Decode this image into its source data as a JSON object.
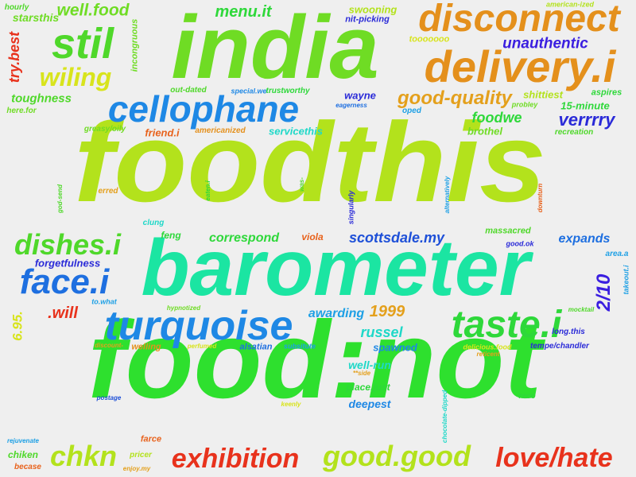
{
  "word_cloud": {
    "words": [
      {
        "text": "foodthis",
        "color": "#b3e21c",
        "rotate": false
      },
      {
        "text": "food:not",
        "color": "#2ee02e",
        "rotate": false
      },
      {
        "text": "india",
        "color": "#6fdc24",
        "rotate": false
      },
      {
        "text": "barometer",
        "color": "#1be5a2",
        "rotate": false
      },
      {
        "text": "disconnect",
        "color": "#e4901c",
        "rotate": false
      },
      {
        "text": "delivery.i",
        "color": "#e4901c",
        "rotate": false
      },
      {
        "text": "stil",
        "color": "#4fd82a",
        "rotate": false
      },
      {
        "text": "cellophane",
        "color": "#1e88e5",
        "rotate": false
      },
      {
        "text": "turquoise",
        "color": "#1e88e5",
        "rotate": false
      },
      {
        "text": "taste.i",
        "color": "#2ed83a",
        "rotate": false
      },
      {
        "text": "face.i",
        "color": "#1e6fe0",
        "rotate": false
      },
      {
        "text": "dishes.i",
        "color": "#4fd82a",
        "rotate": false
      },
      {
        "text": "chkn",
        "color": "#b3e21c",
        "rotate": false
      },
      {
        "text": "exhibition",
        "color": "#e8321c",
        "rotate": false
      },
      {
        "text": "good.good",
        "color": "#b3e21c",
        "rotate": false
      },
      {
        "text": "love/hate",
        "color": "#e8321c",
        "rotate": false
      },
      {
        "text": "wiling",
        "color": "#d8e41c",
        "rotate": false
      },
      {
        "text": "good-quality",
        "color": "#e4a01c",
        "rotate": false
      },
      {
        "text": "well.food",
        "color": "#6fdc24",
        "rotate": false
      },
      {
        "text": "menu.it",
        "color": "#2ed83a",
        "rotate": false
      },
      {
        "text": "starsthis",
        "color": "#6fdc24",
        "rotate": false
      },
      {
        "text": "hourly",
        "color": "#4fd82a",
        "rotate": false
      },
      {
        "text": "try.best",
        "color": "#e8321c",
        "rotate": true
      },
      {
        "text": "incongruous",
        "color": "#6fdc24",
        "rotate": true
      },
      {
        "text": "swooning",
        "color": "#b3e21c",
        "rotate": false
      },
      {
        "text": "nit-picking",
        "color": "#2a2ad8",
        "rotate": false
      },
      {
        "text": "american-ized",
        "color": "#b3e21c",
        "rotate": false
      },
      {
        "text": "tooooooo",
        "color": "#d8e41c",
        "rotate": false
      },
      {
        "text": "unauthentic",
        "color": "#3a1ee0",
        "rotate": false
      },
      {
        "text": "toughness",
        "color": "#4fd82a",
        "rotate": false
      },
      {
        "text": "here.for",
        "color": "#6fdc24",
        "rotate": false
      },
      {
        "text": "out-dated",
        "color": "#4fd82a",
        "rotate": false
      },
      {
        "text": "special.we",
        "color": "#1e88e5",
        "rotate": false
      },
      {
        "text": "trustworthy",
        "color": "#2ed83a",
        "rotate": false
      },
      {
        "text": "wayne",
        "color": "#2a2ad8",
        "rotate": false
      },
      {
        "text": "eagerness",
        "color": "#1e6fe0",
        "rotate": false
      },
      {
        "text": "oped",
        "color": "#1ea0e5",
        "rotate": false
      },
      {
        "text": "shittiest",
        "color": "#b3e21c",
        "rotate": false
      },
      {
        "text": "probley",
        "color": "#6fdc24",
        "rotate": false
      },
      {
        "text": "aspires",
        "color": "#2ed83a",
        "rotate": false
      },
      {
        "text": "15-minute",
        "color": "#2ed83a",
        "rotate": false
      },
      {
        "text": "verrrry",
        "color": "#2a2ad8",
        "rotate": false
      },
      {
        "text": "foodwe",
        "color": "#2ed83a",
        "rotate": false
      },
      {
        "text": "brothel",
        "color": "#6fdc24",
        "rotate": false
      },
      {
        "text": "recreation",
        "color": "#4fd82a",
        "rotate": false
      },
      {
        "text": "greasy/oily",
        "color": "#6fdc24",
        "rotate": false
      },
      {
        "text": "friend.i",
        "color": "#e8621c",
        "rotate": false
      },
      {
        "text": "americanized",
        "color": "#e4901c",
        "rotate": false
      },
      {
        "text": "servicethis",
        "color": "#1ed8c8",
        "rotate": false
      },
      {
        "text": "god-send",
        "color": "#4fd82a",
        "rotate": true
      },
      {
        "text": "erred",
        "color": "#e4a01c",
        "rotate": false
      },
      {
        "text": "eaten.i",
        "color": "#2ed83a",
        "rotate": true
      },
      {
        "text": "was-",
        "color": "#4fd82a",
        "rotate": true
      },
      {
        "text": "singularly",
        "color": "#2a2ad8",
        "rotate": true
      },
      {
        "text": "alternatively",
        "color": "#1ea0e5",
        "rotate": true
      },
      {
        "text": "downturn",
        "color": "#e8621c",
        "rotate": true
      },
      {
        "text": "clung",
        "color": "#1ed8c8",
        "rotate": false
      },
      {
        "text": "feng",
        "color": "#2ed83a",
        "rotate": false
      },
      {
        "text": "viola",
        "color": "#e8621c",
        "rotate": false
      },
      {
        "text": "correspond",
        "color": "#2ed83a",
        "rotate": false
      },
      {
        "text": "scottsdale.my",
        "color": "#1e50d8",
        "rotate": false
      },
      {
        "text": "massacred",
        "color": "#4fd82a",
        "rotate": false
      },
      {
        "text": "good.ok",
        "color": "#2a2ad8",
        "rotate": false
      },
      {
        "text": "expands",
        "color": "#1e6fe0",
        "rotate": false
      },
      {
        "text": "area.a",
        "color": "#1ea0e5",
        "rotate": false
      },
      {
        "text": "forgetfulness",
        "color": "#2a2ad8",
        "rotate": false
      },
      {
        "text": "6.95.",
        "color": "#d8e41c",
        "rotate": true
      },
      {
        "text": ".will",
        "color": "#e8321c",
        "rotate": false
      },
      {
        "text": "to.what",
        "color": "#1ea0e5",
        "rotate": false
      },
      {
        "text": "hypnotized",
        "color": "#6fdc24",
        "rotate": false
      },
      {
        "text": "awarding",
        "color": "#1ea0e5",
        "rotate": false
      },
      {
        "text": "1999",
        "color": "#e4a01c",
        "rotate": false
      },
      {
        "text": "russel",
        "color": "#1ed8c8",
        "rotate": false
      },
      {
        "text": "2/10",
        "color": "#3a1ee0",
        "rotate": true
      },
      {
        "text": "takeout.i",
        "color": "#1ea0e5",
        "rotate": true
      },
      {
        "text": "mocktail",
        "color": "#4fd82a",
        "rotate": false
      },
      {
        "text": "long.this",
        "color": "#2a2ad8",
        "rotate": false
      },
      {
        "text": "discount-",
        "color": "#e4a01c",
        "rotate": false
      },
      {
        "text": "welling",
        "color": "#e4901c",
        "rotate": false
      },
      {
        "text": "perfumed",
        "color": "#d8e41c",
        "rotate": false
      },
      {
        "text": "alsatian",
        "color": "#1e6fe0",
        "rotate": false
      },
      {
        "text": "subsitute",
        "color": "#1ea0e5",
        "rotate": false
      },
      {
        "text": "spawned",
        "color": "#1e88e5",
        "rotate": false
      },
      {
        "text": "delicious.food",
        "color": "#d8e41c",
        "rotate": false
      },
      {
        "text": "tempe/chandler",
        "color": "#2a2ad8",
        "rotate": false
      },
      {
        "text": "reticent",
        "color": "#e4a01c",
        "rotate": false
      },
      {
        "text": "well-run",
        "color": "#1ed8c8",
        "rotate": false
      },
      {
        "text": "**side",
        "color": "#e4a01c",
        "rotate": false
      },
      {
        "text": "place.just",
        "color": "#2ed83a",
        "rotate": false
      },
      {
        "text": "deepest",
        "color": "#1e88e5",
        "rotate": false
      },
      {
        "text": "postage",
        "color": "#1e50d8",
        "rotate": false
      },
      {
        "text": "keenly",
        "color": "#d8e41c",
        "rotate": false
      },
      {
        "text": "chocolate-dipped",
        "color": "#1ed8c8",
        "rotate": true
      },
      {
        "text": "reco",
        "color": "#2ed83a",
        "rotate": false
      },
      {
        "text": "rejuvenate",
        "color": "#1ea0e5",
        "rotate": false
      },
      {
        "text": "farce",
        "color": "#e8621c",
        "rotate": false
      },
      {
        "text": "chiken",
        "color": "#4fd82a",
        "rotate": false
      },
      {
        "text": "pricer",
        "color": "#b3e21c",
        "rotate": false
      },
      {
        "text": "becase",
        "color": "#e8621c",
        "rotate": false
      },
      {
        "text": "enjoy.my",
        "color": "#e4a01c",
        "rotate": false
      }
    ]
  }
}
